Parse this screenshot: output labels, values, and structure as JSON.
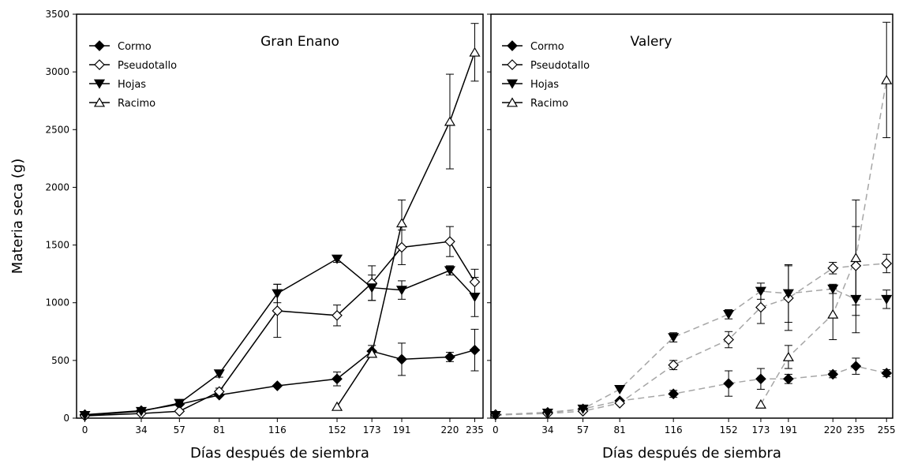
{
  "figure": {
    "ylabel": "Materia seca (g)"
  },
  "chart_data": [
    {
      "type": "line",
      "title": "Gran Enano",
      "xlabel": "Días después de siembra",
      "ylabel": "Materia seca (g)",
      "x_ticks": [
        0,
        34,
        57,
        81,
        116,
        152,
        173,
        191,
        220,
        235
      ],
      "ylim": [
        0,
        3500
      ],
      "y_ticks": [
        0,
        500,
        1000,
        1500,
        2000,
        2500,
        3000,
        3500
      ],
      "grid": false,
      "legend": "top-left",
      "line_color": "#000000",
      "line_style": "solid",
      "series": [
        {
          "name": "Cormo",
          "marker": "diamond-filled",
          "x": [
            0,
            34,
            57,
            81,
            116,
            152,
            173,
            191,
            220,
            235
          ],
          "y": [
            30,
            65,
            120,
            200,
            280,
            340,
            580,
            510,
            530,
            590
          ],
          "err": [
            0,
            0,
            0,
            0,
            0,
            60,
            50,
            140,
            40,
            180
          ]
        },
        {
          "name": "Pseudotallo",
          "marker": "diamond-open",
          "x": [
            0,
            34,
            57,
            81,
            116,
            152,
            173,
            191,
            220,
            235
          ],
          "y": [
            20,
            40,
            60,
            230,
            930,
            890,
            1170,
            1480,
            1530,
            1180
          ],
          "err": [
            0,
            0,
            0,
            30,
            230,
            90,
            150,
            150,
            130,
            110
          ]
        },
        {
          "name": "Hojas",
          "marker": "triangle-down-filled",
          "x": [
            0,
            34,
            57,
            81,
            116,
            152,
            173,
            191,
            220,
            235
          ],
          "y": [
            25,
            60,
            130,
            385,
            1080,
            1380,
            1130,
            1110,
            1280,
            1050
          ],
          "err": [
            0,
            0,
            0,
            30,
            80,
            30,
            110,
            80,
            40,
            170
          ]
        },
        {
          "name": "Racimo",
          "marker": "triangle-up-open",
          "x": [
            152,
            173,
            191,
            220,
            235
          ],
          "y": [
            100,
            560,
            1690,
            2570,
            3170
          ],
          "err": [
            0,
            0,
            200,
            410,
            250
          ]
        }
      ]
    },
    {
      "type": "line",
      "title": "Valery",
      "xlabel": "Días después de siembra",
      "ylabel": "",
      "x_ticks": [
        0,
        34,
        57,
        81,
        116,
        152,
        173,
        191,
        220,
        235,
        255
      ],
      "ylim": [
        0,
        3500
      ],
      "y_ticks": [],
      "grid": false,
      "legend": "top-left",
      "line_color": "#a6a6a6",
      "line_style": "dashed",
      "series": [
        {
          "name": "Cormo",
          "marker": "diamond-filled",
          "x": [
            0,
            34,
            57,
            81,
            116,
            152,
            173,
            191,
            220,
            235,
            255
          ],
          "y": [
            30,
            50,
            80,
            150,
            210,
            300,
            340,
            340,
            380,
            450,
            390
          ],
          "err": [
            0,
            0,
            0,
            0,
            30,
            110,
            90,
            40,
            30,
            70,
            30
          ]
        },
        {
          "name": "Pseudotallo",
          "marker": "diamond-open",
          "x": [
            0,
            34,
            57,
            81,
            116,
            152,
            173,
            191,
            220,
            235,
            255
          ],
          "y": [
            30,
            40,
            60,
            130,
            460,
            680,
            960,
            1040,
            1300,
            1320,
            1340
          ],
          "err": [
            0,
            0,
            0,
            0,
            40,
            70,
            140,
            280,
            50,
            340,
            80
          ]
        },
        {
          "name": "Hojas",
          "marker": "triangle-down-filled",
          "x": [
            0,
            34,
            57,
            81,
            116,
            152,
            173,
            191,
            220,
            235,
            255
          ],
          "y": [
            25,
            45,
            80,
            250,
            700,
            900,
            1100,
            1080,
            1120,
            1030,
            1030
          ],
          "err": [
            0,
            0,
            0,
            0,
            40,
            40,
            70,
            250,
            40,
            290,
            80
          ]
        },
        {
          "name": "Racimo",
          "marker": "triangle-up-open",
          "x": [
            173,
            191,
            220,
            235,
            255
          ],
          "y": [
            120,
            530,
            900,
            1390,
            2930
          ],
          "err": [
            0,
            100,
            220,
            500,
            500
          ]
        }
      ]
    }
  ]
}
